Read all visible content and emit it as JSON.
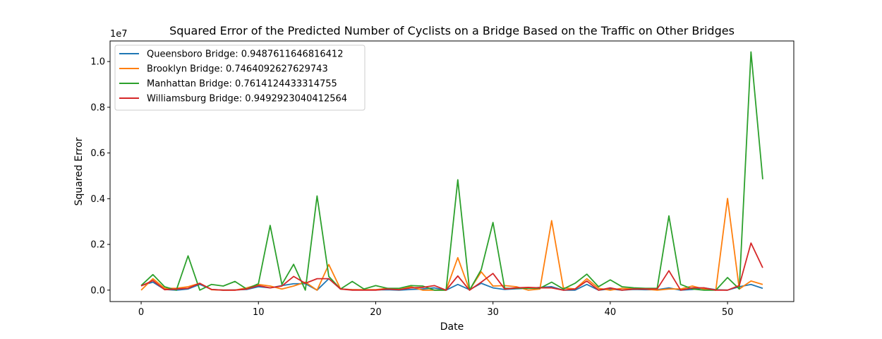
{
  "chart_data": {
    "type": "line",
    "title": "Squared Error of the Predicted Number of Cyclists on a Bridge Based on the Traffic on Other Bridges",
    "xlabel": "Date",
    "ylabel": "Squared Error",
    "y_scale_label": "1e7",
    "xlim": [
      -2.65,
      55.65
    ],
    "ylim": [
      -500000,
      10900000
    ],
    "x_ticks": [
      0,
      10,
      20,
      30,
      40,
      50
    ],
    "y_ticks": [
      0,
      2000000,
      4000000,
      6000000,
      8000000,
      10000000
    ],
    "y_tick_labels": [
      "0.0",
      "0.2",
      "0.4",
      "0.6",
      "0.8",
      "1.0"
    ],
    "grid": false,
    "legend_position": "top-left",
    "x": [
      0,
      1,
      2,
      3,
      4,
      5,
      6,
      7,
      8,
      9,
      10,
      11,
      12,
      13,
      14,
      15,
      16,
      17,
      18,
      19,
      20,
      21,
      22,
      23,
      24,
      25,
      26,
      27,
      28,
      29,
      30,
      31,
      32,
      33,
      34,
      35,
      36,
      37,
      38,
      39,
      40,
      41,
      42,
      43,
      44,
      45,
      46,
      47,
      48,
      49,
      50,
      51,
      52,
      53
    ],
    "series": [
      {
        "name": "Queensboro Bridge: 0.9487611646816412",
        "color": "#1f77b4",
        "values": [
          200000,
          350000,
          30000,
          0,
          50000,
          250000,
          30000,
          0,
          10000,
          30000,
          150000,
          100000,
          200000,
          280000,
          280000,
          0,
          500000,
          50000,
          20000,
          10000,
          10000,
          20000,
          0,
          30000,
          50000,
          100000,
          0,
          250000,
          20000,
          300000,
          100000,
          30000,
          60000,
          80000,
          120000,
          150000,
          0,
          0,
          250000,
          0,
          50000,
          0,
          30000,
          20000,
          20000,
          100000,
          0,
          30000,
          100000,
          20000,
          0,
          150000,
          250000,
          80000
        ]
      },
      {
        "name": "Brooklyn Bridge: 0.7464092627629743",
        "color": "#ff7f0e",
        "values": [
          0,
          500000,
          80000,
          80000,
          150000,
          300000,
          20000,
          0,
          0,
          100000,
          250000,
          180000,
          50000,
          180000,
          350000,
          0,
          1120000,
          50000,
          20000,
          20000,
          20000,
          80000,
          20000,
          150000,
          0,
          0,
          0,
          1420000,
          0,
          800000,
          180000,
          200000,
          150000,
          0,
          50000,
          3040000,
          100000,
          50000,
          500000,
          80000,
          0,
          80000,
          50000,
          50000,
          0,
          50000,
          50000,
          180000,
          50000,
          0,
          4010000,
          50000,
          400000,
          250000
        ]
      },
      {
        "name": "Manhattan Bridge: 0.7614124433314755",
        "color": "#2ca02c",
        "values": [
          200000,
          680000,
          150000,
          0,
          1500000,
          0,
          250000,
          180000,
          380000,
          50000,
          280000,
          2830000,
          250000,
          1130000,
          0,
          4120000,
          600000,
          50000,
          380000,
          50000,
          200000,
          80000,
          80000,
          200000,
          180000,
          0,
          0,
          4830000,
          0,
          900000,
          2960000,
          80000,
          80000,
          80000,
          80000,
          350000,
          50000,
          300000,
          700000,
          150000,
          450000,
          150000,
          100000,
          80000,
          80000,
          3250000,
          250000,
          50000,
          0,
          0,
          550000,
          50000,
          10420000,
          4850000
        ]
      },
      {
        "name": "Williamsburg Bridge: 0.9492923040412564",
        "color": "#d62728",
        "values": [
          180000,
          420000,
          20000,
          50000,
          80000,
          300000,
          30000,
          0,
          0,
          50000,
          200000,
          100000,
          180000,
          600000,
          300000,
          500000,
          500000,
          50000,
          0,
          0,
          0,
          50000,
          20000,
          100000,
          120000,
          200000,
          0,
          620000,
          0,
          350000,
          730000,
          50000,
          100000,
          120000,
          100000,
          100000,
          0,
          50000,
          400000,
          0,
          100000,
          0,
          50000,
          50000,
          50000,
          850000,
          0,
          100000,
          100000,
          0,
          0,
          200000,
          2060000,
          980000
        ]
      }
    ]
  }
}
